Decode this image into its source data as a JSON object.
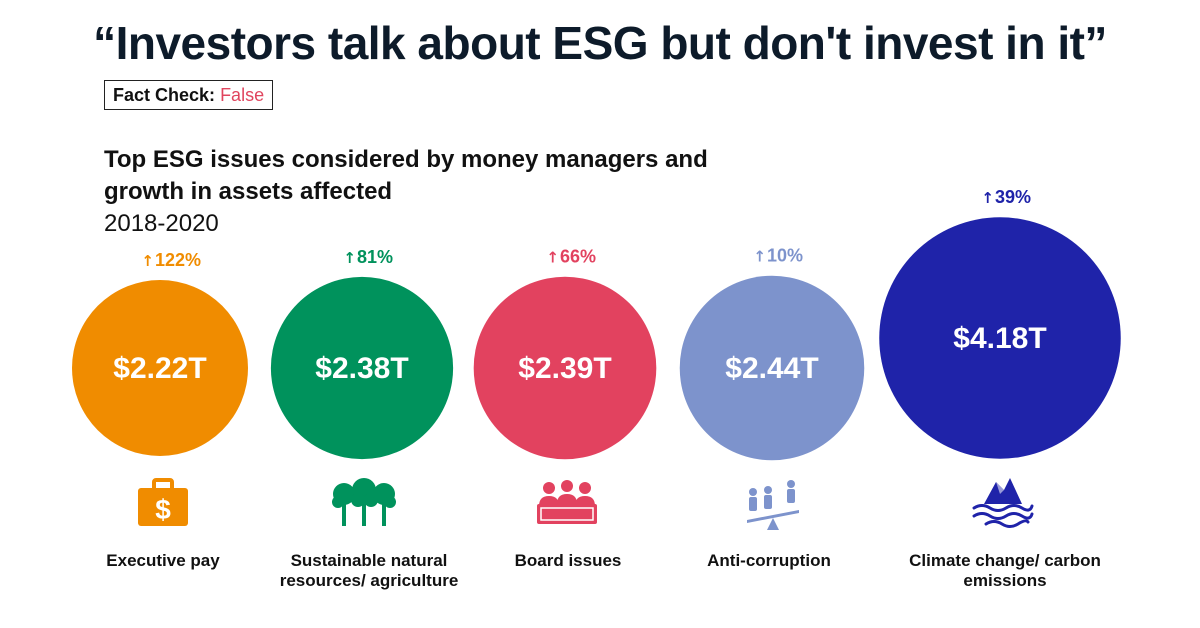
{
  "header": {
    "headline": "“Investors talk about ESG but don't invest in it”",
    "fact_check_label": "Fact Check:",
    "fact_check_value": "False"
  },
  "chart_data": {
    "type": "bubble",
    "title": "Top ESG issues considered by money managers and growth in assets affected",
    "subtitle": "2018-2020",
    "unit": "trillion USD",
    "categories": [
      {
        "label": "Executive pay",
        "value": 2.22,
        "value_label": "$2.22T",
        "growth": 122,
        "growth_label": "122%",
        "color": "#f08c00",
        "icon": "briefcase-dollar-icon"
      },
      {
        "label": "Sustainable natural resources/ agriculture",
        "value": 2.38,
        "value_label": "$2.38T",
        "growth": 81,
        "growth_label": "81%",
        "color": "#00925c",
        "icon": "trees-icon"
      },
      {
        "label": "Board issues",
        "value": 2.39,
        "value_label": "$2.39T",
        "growth": 66,
        "growth_label": "66%",
        "color": "#e2425f",
        "icon": "board-members-icon"
      },
      {
        "label": "Anti-corruption",
        "value": 2.44,
        "value_label": "$2.44T",
        "growth": 10,
        "growth_label": "10%",
        "color": "#7d93cc",
        "icon": "scale-people-icon"
      },
      {
        "label": "Climate change/ carbon emissions",
        "value": 4.18,
        "value_label": "$4.18T",
        "growth": 39,
        "growth_label": "39%",
        "color": "#1f23a9",
        "icon": "iceberg-waves-icon"
      }
    ]
  }
}
